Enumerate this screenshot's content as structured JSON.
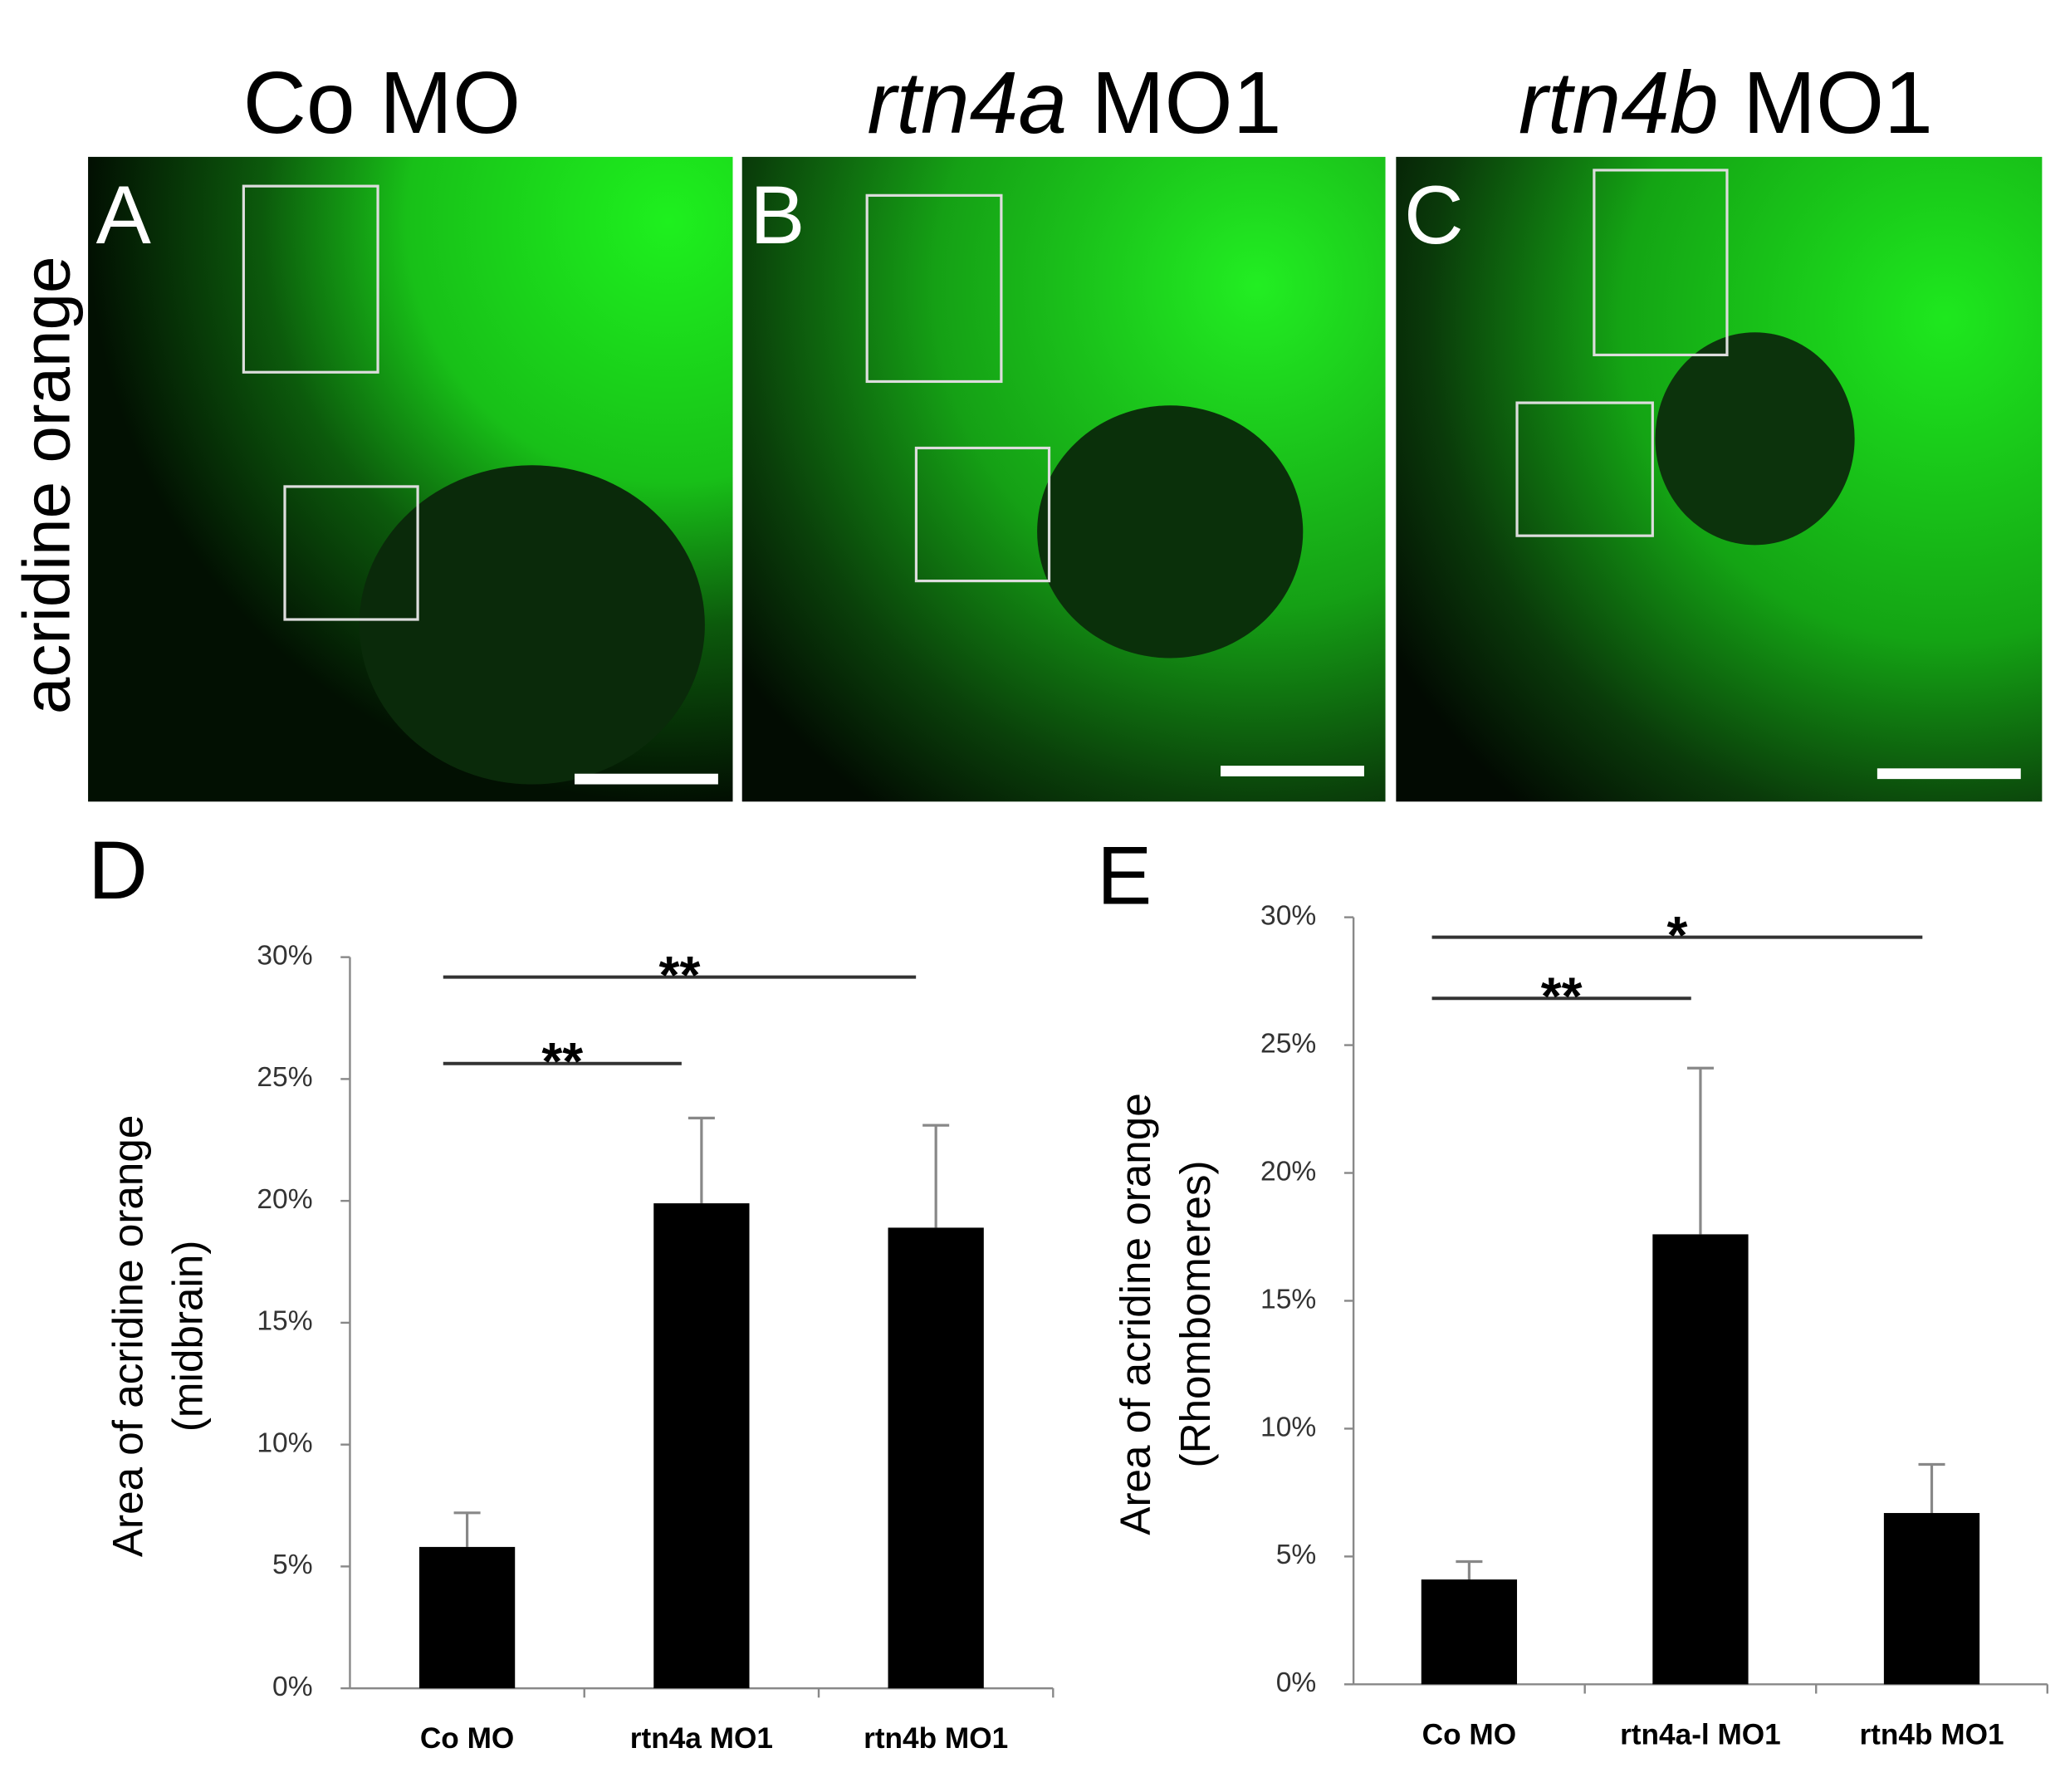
{
  "figure": {
    "panel_headers": [
      {
        "text": "Co MO"
      },
      {
        "italic": "rtn4a",
        "text": "MO1"
      },
      {
        "italic": "rtn4b",
        "text": "MO1"
      }
    ],
    "row_label": "acridine orange",
    "panel_letters": [
      "A",
      "B",
      "C"
    ]
  },
  "chart_data": [
    {
      "type": "bar",
      "panel_letter": "D",
      "ylabel": [
        "Area of acridine orange",
        "(midbrain)"
      ],
      "categories": [
        "Co MO",
        "rtn4a MO1",
        "rtn4b MO1"
      ],
      "values": [
        5.8,
        19.9,
        18.9
      ],
      "errors": [
        1.4,
        3.5,
        4.2
      ],
      "color": "#000000",
      "ylim": [
        0,
        30
      ],
      "yticks": [
        {
          "value": 0,
          "label": "0%"
        },
        {
          "value": 5,
          "label": "5%"
        },
        {
          "value": 10,
          "label": "10%"
        },
        {
          "value": 15,
          "label": "15%"
        },
        {
          "value": 20,
          "label": "20%"
        },
        {
          "value": 25,
          "label": "25%"
        },
        {
          "value": 30,
          "label": "30%"
        }
      ],
      "comparisons": [
        {
          "label": "**",
          "between": [
            "Co MO",
            "rtn4b MO1"
          ]
        },
        {
          "label": "**",
          "between": [
            "Co MO",
            "rtn4a MO1"
          ]
        }
      ]
    },
    {
      "type": "bar",
      "panel_letter": "E",
      "ylabel": [
        "Area of acridine orange",
        "(Rhombomeres)"
      ],
      "categories": [
        "Co MO",
        "rtn4a-l MO1",
        "rtn4b MO1"
      ],
      "values": [
        4.1,
        17.6,
        6.7
      ],
      "errors": [
        0.7,
        6.5,
        1.9
      ],
      "color": "#000000",
      "ylim": [
        0,
        30
      ],
      "yticks": [
        {
          "value": 0,
          "label": "0%"
        },
        {
          "value": 5,
          "label": "5%"
        },
        {
          "value": 10,
          "label": "10%"
        },
        {
          "value": 15,
          "label": "15%"
        },
        {
          "value": 20,
          "label": "20%"
        },
        {
          "value": 25,
          "label": "25%"
        },
        {
          "value": 30,
          "label": "30%"
        }
      ],
      "comparisons": [
        {
          "label": "*",
          "between": [
            "Co MO",
            "rtn4b MO1"
          ]
        },
        {
          "label": "**",
          "between": [
            "Co MO",
            "rtn4a-l MO1"
          ]
        }
      ]
    }
  ]
}
